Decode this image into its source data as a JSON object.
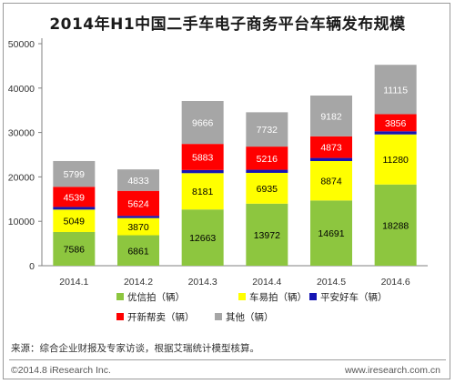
{
  "title": "2014年H1中国二手车电子商务平台车辆发布规模",
  "source": "来源：综合企业财报及专家访谈，根据艾瑞统计模型核算。",
  "copyright": "©2014.8 iResearch Inc.",
  "website": "www.iresearch.com.cn",
  "chart_data": {
    "type": "bar",
    "stacked": true,
    "categories": [
      "2014.1",
      "2014.2",
      "2014.3",
      "2014.4",
      "2014.5",
      "2014.6"
    ],
    "ylim": [
      0,
      50000
    ],
    "yticks": [
      0,
      10000,
      20000,
      30000,
      40000,
      50000
    ],
    "legend_position": "bottom",
    "series": [
      {
        "name": "优信拍（辆）",
        "color": "#8dc63f",
        "values": [
          7586,
          6861,
          12663,
          13972,
          14691,
          18288
        ],
        "labels": [
          "7586",
          "6861",
          "12663",
          "13972",
          "14691",
          "18288"
        ]
      },
      {
        "name": "车易拍（辆）",
        "color": "#ffff00",
        "values": [
          5049,
          3870,
          8181,
          6935,
          8874,
          11280
        ],
        "labels": [
          "5049",
          "3870",
          "8181",
          "6935",
          "8874",
          "11280"
        ]
      },
      {
        "name": "平安好车（辆）",
        "color": "#1515b4",
        "values": [
          600,
          500,
          700,
          700,
          700,
          700
        ],
        "labels": []
      },
      {
        "name": "开新帮卖（辆）",
        "color": "#ff0000",
        "values": [
          4539,
          5624,
          5883,
          5216,
          4873,
          3856
        ],
        "labels": [
          "4539",
          "5624",
          "5883",
          "5216",
          "4873",
          "3856"
        ]
      },
      {
        "name": "其他（辆）",
        "color": "#a6a6a6",
        "values": [
          5799,
          4833,
          9666,
          7732,
          9182,
          11115
        ],
        "labels": [
          "5799",
          "4833",
          "9666",
          "7732",
          "9182",
          "11115"
        ]
      }
    ]
  }
}
